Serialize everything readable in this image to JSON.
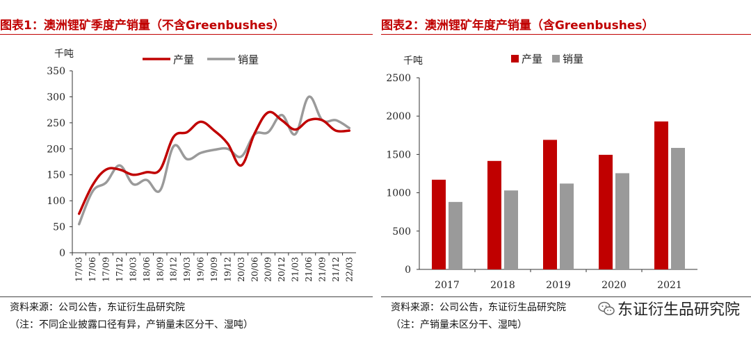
{
  "left": {
    "title": "图表1：澳洲锂矿季度产销量（不含Greenbushes）",
    "source": "资料来源：公司公告，东证衍生品研究院",
    "note": "（注：不同企业披露口径有异，产销量未区分干、湿吨）"
  },
  "right": {
    "title": "图表2：澳洲锂矿年度产销量（含Greenbushes）",
    "source": "资料来源：公司公告，东证衍生品研究院",
    "note": "（注：产销量未区分干、湿吨）"
  },
  "watermark": {
    "text": "东证衍生品研究院",
    "icon": "wechat-icon"
  },
  "chart_data": [
    {
      "type": "line",
      "ylabel": "千吨",
      "ylim": [
        0,
        350
      ],
      "yticks": [
        0,
        50,
        100,
        150,
        200,
        250,
        300,
        350
      ],
      "categories": [
        "17/03",
        "17/06",
        "17/09",
        "17/12",
        "18/03",
        "18/06",
        "18/09",
        "18/12",
        "19/03",
        "19/06",
        "19/09",
        "19/12",
        "20/03",
        "20/06",
        "20/09",
        "20/12",
        "21/03",
        "21/06",
        "21/09",
        "21/12",
        "22/03"
      ],
      "series": [
        {
          "name": "产量",
          "color": "#c00000",
          "values": [
            75,
            130,
            160,
            160,
            150,
            155,
            160,
            223,
            232,
            252,
            235,
            210,
            168,
            230,
            270,
            255,
            237,
            255,
            255,
            235,
            235
          ]
        },
        {
          "name": "销量",
          "color": "#9a9a9a",
          "values": [
            55,
            118,
            135,
            168,
            132,
            140,
            120,
            205,
            180,
            192,
            198,
            200,
            185,
            228,
            232,
            265,
            228,
            300,
            255,
            255,
            240
          ]
        }
      ],
      "legend": "top",
      "grid": false
    },
    {
      "type": "bar",
      "ylabel": "千吨",
      "ylim": [
        0,
        2500
      ],
      "yticks": [
        0,
        500,
        1000,
        1500,
        2000,
        2500
      ],
      "categories": [
        "2017",
        "2018",
        "2019",
        "2020",
        "2021"
      ],
      "series": [
        {
          "name": "产量",
          "color": "#c00000",
          "values": [
            1170,
            1415,
            1690,
            1495,
            1930
          ]
        },
        {
          "name": "销量",
          "color": "#9a9a9a",
          "values": [
            880,
            1030,
            1120,
            1255,
            1585
          ]
        }
      ],
      "legend": "top",
      "grid": false
    }
  ]
}
